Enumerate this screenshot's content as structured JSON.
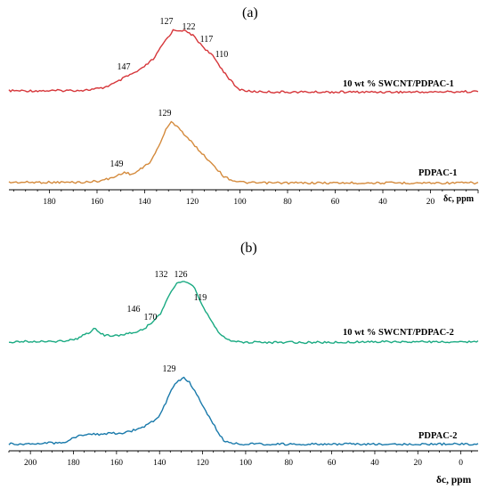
{
  "chart_data": [
    {
      "panel_label": "(a)",
      "type": "line",
      "xlabel": "δc, ppm",
      "xlim": [
        197,
        0
      ],
      "x_ticks": [
        "180",
        "160",
        "140",
        "120",
        "100",
        "80",
        "60",
        "40",
        "20"
      ],
      "series": [
        {
          "name": "10 wt % SWCNT/PDPAC-1",
          "color": "#d6363a",
          "peaks": [
            "147",
            "127",
            "122",
            "117",
            "110"
          ],
          "x": [
            197,
            180,
            165,
            158,
            152,
            148,
            142,
            136,
            132,
            128,
            124,
            120,
            117,
            114,
            111,
            108,
            104,
            101,
            96,
            85,
            60,
            40,
            20,
            0
          ],
          "y": [
            0.03,
            0.03,
            0.04,
            0.07,
            0.16,
            0.25,
            0.36,
            0.55,
            0.8,
            1.0,
            1.0,
            0.93,
            0.8,
            0.68,
            0.57,
            0.4,
            0.2,
            0.06,
            0.02,
            0.01,
            0.01,
            0.01,
            0.01,
            0.02
          ]
        },
        {
          "name": "PDPAC-1",
          "color": "#d48a3c",
          "peaks": [
            "149",
            "129"
          ],
          "x": [
            197,
            180,
            165,
            158,
            153,
            149,
            145,
            141,
            137,
            134,
            131,
            129,
            126,
            123,
            119,
            115,
            111,
            107,
            103,
            99,
            95,
            85,
            60,
            40,
            20,
            0
          ],
          "y": [
            0.02,
            0.02,
            0.02,
            0.05,
            0.1,
            0.18,
            0.15,
            0.25,
            0.38,
            0.62,
            0.88,
            1.0,
            0.93,
            0.78,
            0.62,
            0.45,
            0.3,
            0.12,
            0.05,
            0.02,
            0.01,
            0.01,
            0.01,
            0.01,
            0.01,
            0.01
          ]
        }
      ]
    },
    {
      "panel_label": "(b)",
      "type": "line",
      "xlabel": "δc, ppm",
      "xlim": [
        210,
        -8
      ],
      "x_ticks": [
        "200",
        "180",
        "160",
        "140",
        "120",
        "100",
        "80",
        "60",
        "40",
        "20",
        "0"
      ],
      "series": [
        {
          "name": "10 wt % SWCNT/PDPAC-2",
          "color": "#1aaa82",
          "peaks": [
            "170",
            "146",
            "132",
            "126",
            "119"
          ],
          "x": [
            210,
            185,
            178,
            173,
            170,
            166,
            160,
            154,
            148,
            144,
            140,
            136,
            132,
            128,
            124,
            120,
            116,
            112,
            108,
            104,
            95,
            80,
            60,
            40,
            20,
            0,
            -8
          ],
          "y": [
            0.02,
            0.03,
            0.08,
            0.17,
            0.24,
            0.13,
            0.12,
            0.16,
            0.22,
            0.32,
            0.46,
            0.76,
            1.0,
            1.0,
            0.92,
            0.61,
            0.38,
            0.15,
            0.04,
            0.02,
            0.01,
            0.01,
            0.01,
            0.02,
            0.02,
            0.02,
            0.02
          ]
        },
        {
          "name": "PDPAC-2",
          "color": "#1a7aab",
          "peaks": [
            "129"
          ],
          "x": [
            210,
            185,
            178,
            173,
            168,
            162,
            156,
            150,
            146,
            141,
            137,
            133,
            129,
            126,
            122,
            118,
            114,
            110,
            106,
            102,
            95,
            80,
            60,
            40,
            20,
            0,
            -8
          ],
          "y": [
            0.02,
            0.04,
            0.14,
            0.18,
            0.16,
            0.18,
            0.19,
            0.24,
            0.3,
            0.4,
            0.64,
            0.91,
            1.0,
            0.93,
            0.72,
            0.48,
            0.26,
            0.06,
            0.03,
            0.02,
            0.02,
            0.02,
            0.02,
            0.02,
            0.02,
            0.02,
            0.02
          ]
        }
      ]
    }
  ]
}
